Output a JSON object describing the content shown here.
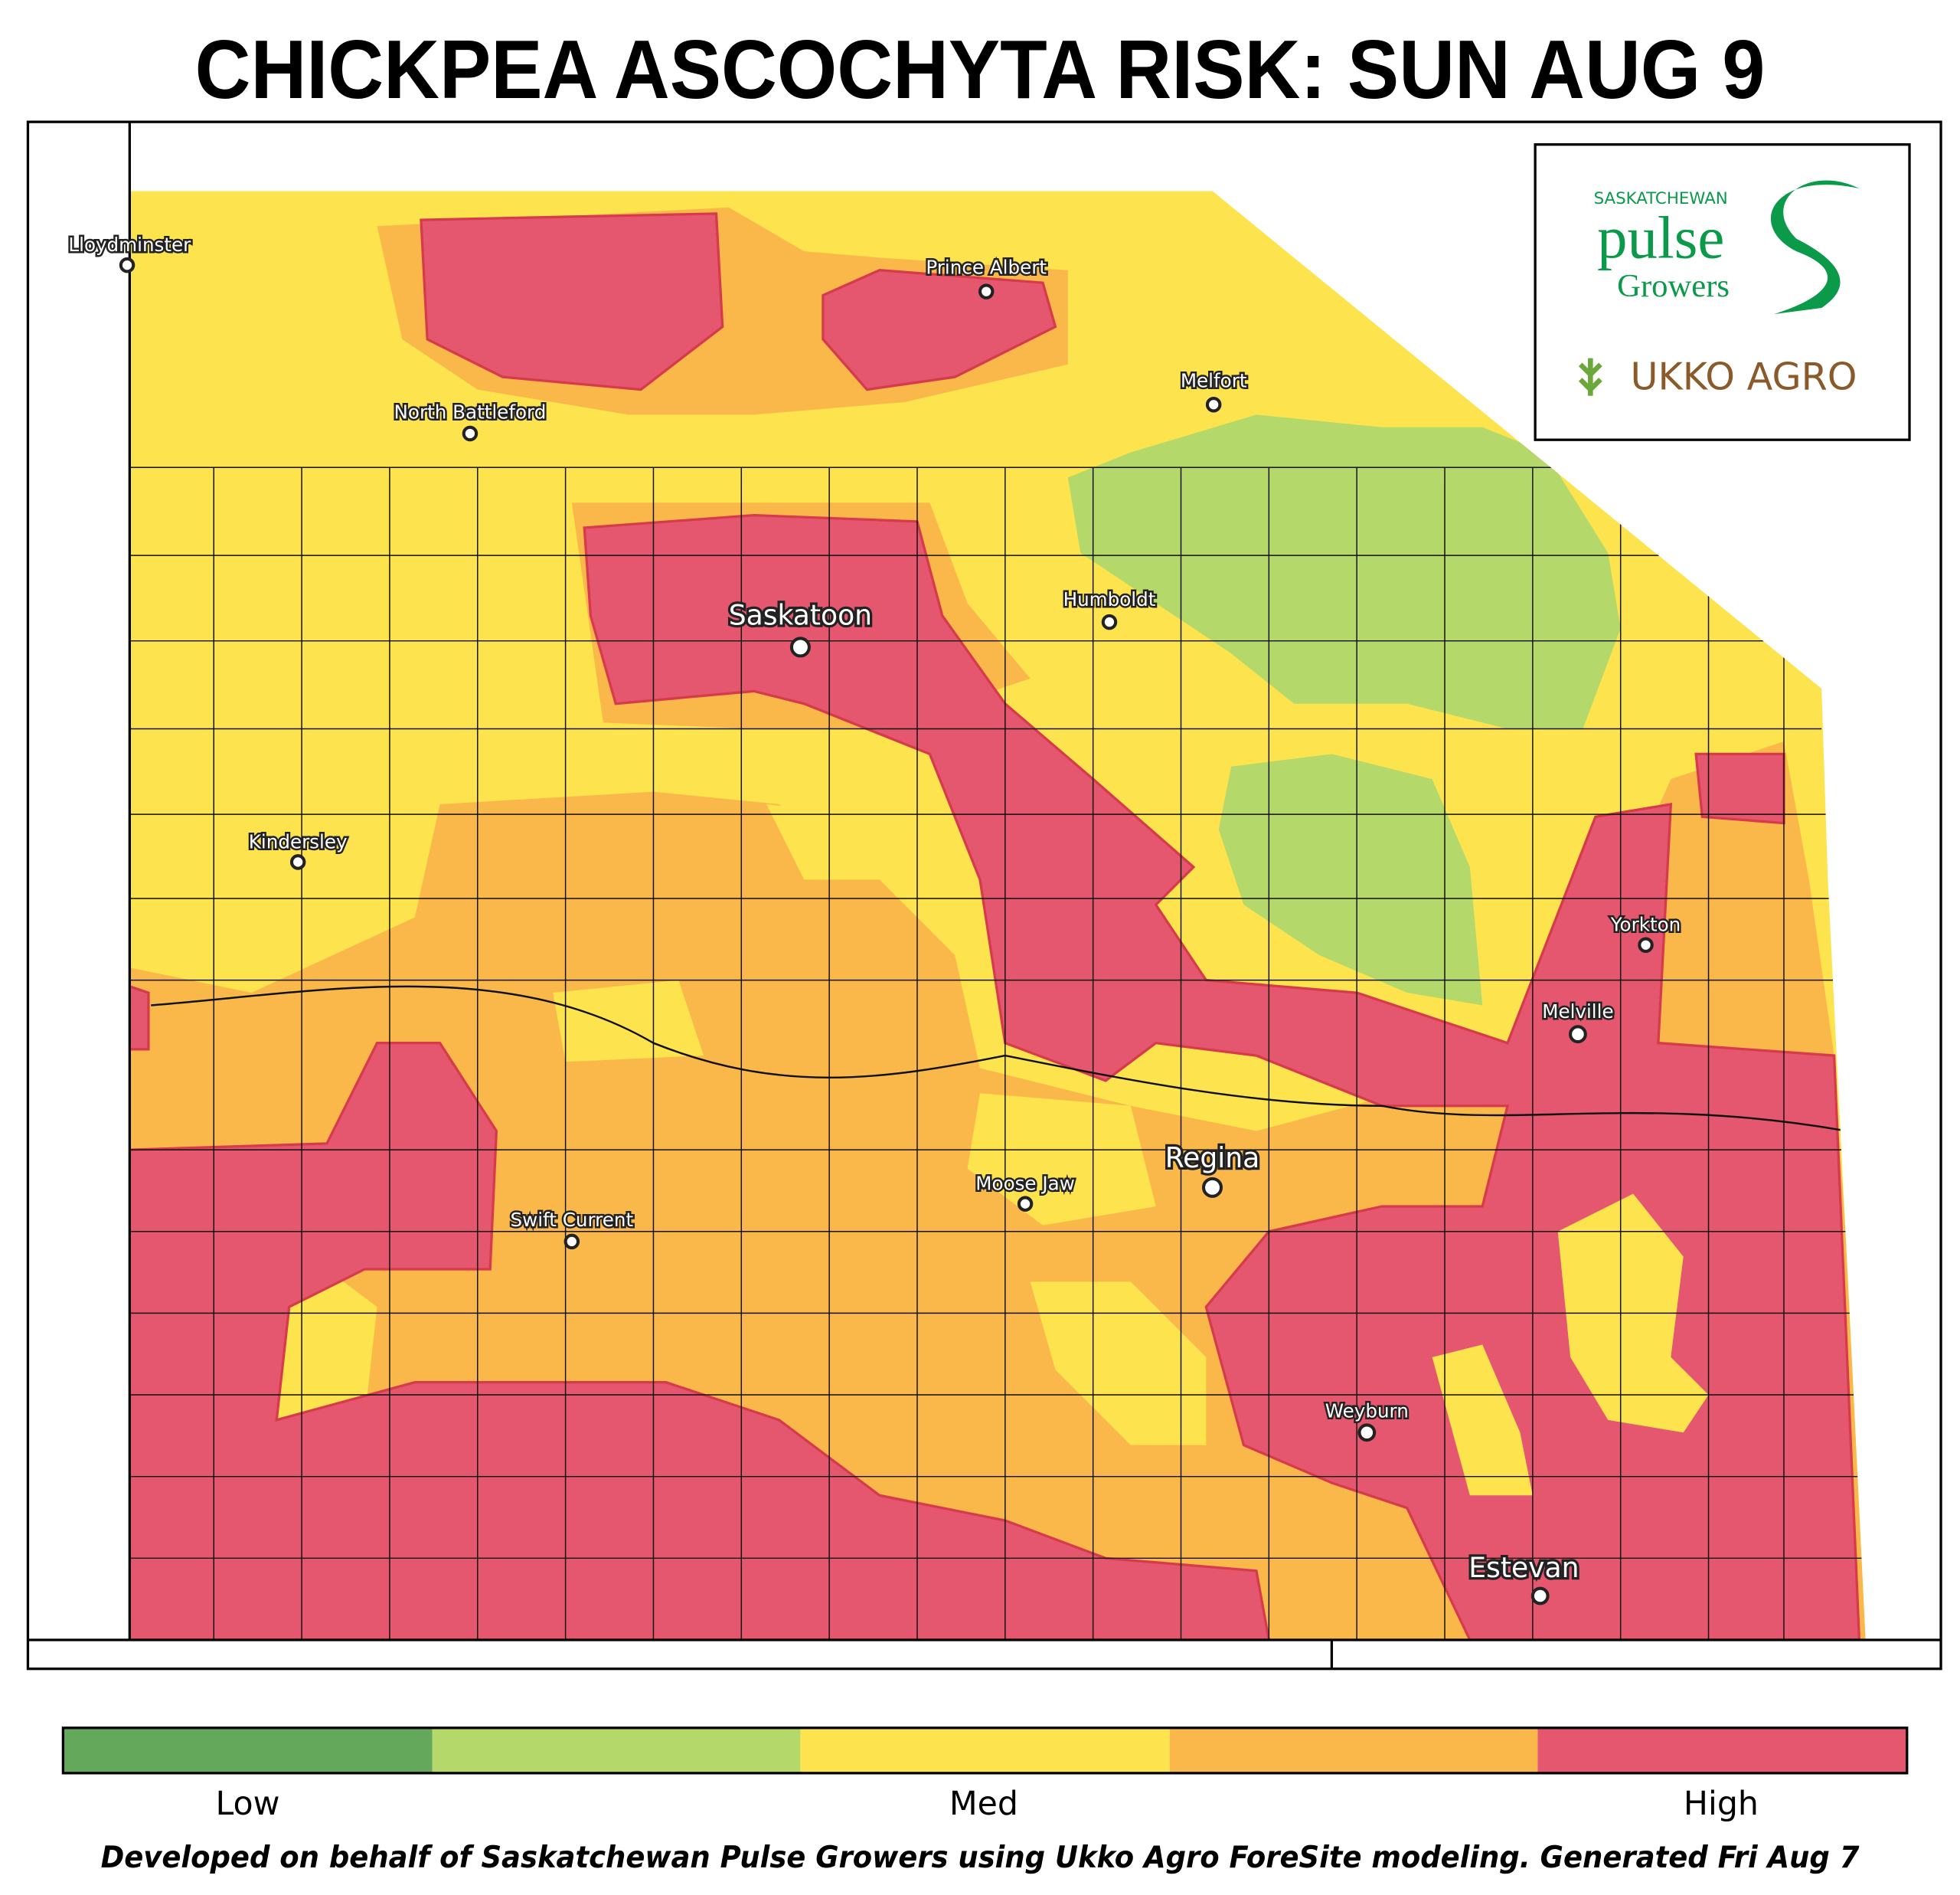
{
  "title": "CHICKPEA ASCOCHYTA RISK: SUN AUG 9",
  "logo": {
    "org_top": "SASKATCHEWAN",
    "org_main": "pulse",
    "org_sub": "Growers",
    "partner": "UKKO AGRO"
  },
  "cities": [
    "Lloydminster",
    "Prince Albert",
    "Melfort",
    "North Battleford",
    "Saskatoon",
    "Humboldt",
    "Kindersley",
    "Yorkton",
    "Melville",
    "Moose Jaw",
    "Regina",
    "Swift Current",
    "Weyburn",
    "Estevan"
  ],
  "legend": {
    "labels": [
      "Low",
      "Med",
      "High"
    ]
  },
  "footer": "Developed on behalf of Saskatchewan Pulse Growers using Ukko Agro ForeSite modeling. Generated Fri Aug 7"
}
